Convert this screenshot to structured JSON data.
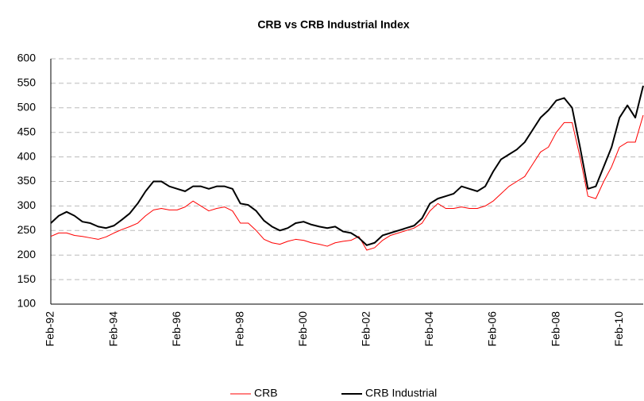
{
  "chart_data": {
    "type": "line",
    "title": "CRB vs CRB Industrial Index",
    "categories": [
      "Feb-92",
      null,
      null,
      null,
      null,
      null,
      null,
      null,
      "Feb-94",
      null,
      null,
      null,
      null,
      null,
      null,
      null,
      "Feb-96",
      null,
      null,
      null,
      null,
      null,
      null,
      null,
      "Feb-98",
      null,
      null,
      null,
      null,
      null,
      null,
      null,
      "Feb-00",
      null,
      null,
      null,
      null,
      null,
      null,
      null,
      "Feb-02",
      null,
      null,
      null,
      null,
      null,
      null,
      null,
      "Feb-04",
      null,
      null,
      null,
      null,
      null,
      null,
      null,
      "Feb-06",
      null,
      null,
      null,
      null,
      null,
      null,
      null,
      "Feb-08",
      null,
      null,
      null,
      null,
      null,
      null,
      null,
      "Feb-10",
      null,
      null,
      null
    ],
    "series": [
      {
        "name": "CRB",
        "color": "#ff0000",
        "width": 1,
        "values": [
          238,
          245,
          245,
          240,
          238,
          235,
          232,
          237,
          245,
          252,
          258,
          265,
          280,
          292,
          295,
          292,
          292,
          298,
          310,
          300,
          290,
          295,
          298,
          290,
          265,
          265,
          250,
          232,
          225,
          222,
          228,
          232,
          230,
          225,
          222,
          218,
          225,
          228,
          230,
          238,
          210,
          215,
          230,
          240,
          245,
          250,
          255,
          265,
          290,
          305,
          295,
          295,
          298,
          295,
          295,
          300,
          310,
          325,
          340,
          350,
          360,
          385,
          410,
          420,
          450,
          470,
          470,
          400,
          320,
          315,
          350,
          380,
          420,
          430,
          430,
          485
        ]
      },
      {
        "name": "CRB Industrial",
        "color": "#000000",
        "width": 2,
        "values": [
          265,
          280,
          288,
          280,
          268,
          265,
          258,
          255,
          260,
          272,
          285,
          305,
          330,
          350,
          350,
          340,
          335,
          330,
          340,
          340,
          335,
          340,
          340,
          335,
          305,
          302,
          290,
          270,
          258,
          250,
          255,
          265,
          268,
          262,
          258,
          255,
          258,
          248,
          245,
          235,
          220,
          225,
          240,
          245,
          250,
          255,
          260,
          275,
          305,
          315,
          320,
          325,
          340,
          335,
          330,
          340,
          370,
          395,
          405,
          415,
          430,
          455,
          480,
          495,
          515,
          520,
          500,
          420,
          335,
          340,
          380,
          420,
          480,
          505,
          480,
          545
        ]
      }
    ],
    "ylim": [
      100,
      600
    ],
    "yticks": [
      100,
      150,
      200,
      250,
      300,
      350,
      400,
      450,
      500,
      550,
      600
    ],
    "grid": true
  }
}
